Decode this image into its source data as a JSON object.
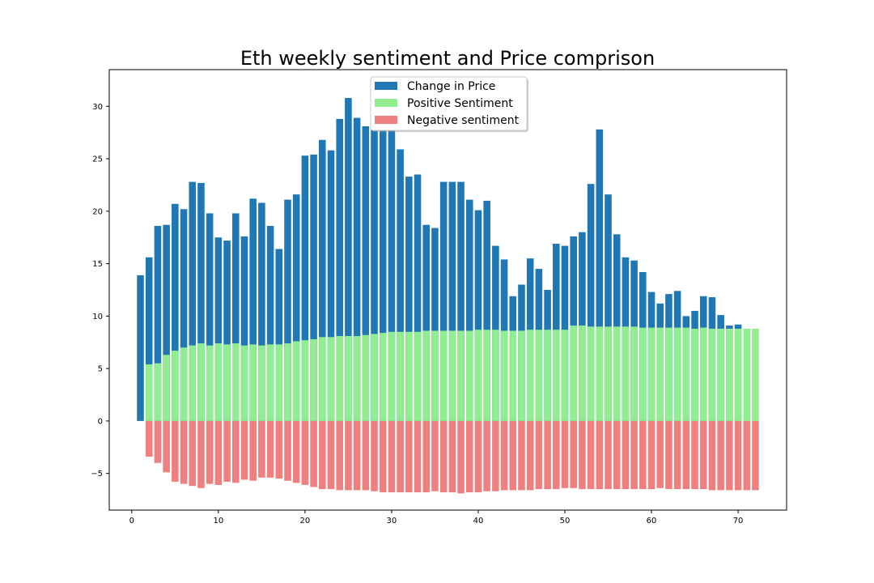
{
  "chart_data": {
    "type": "bar",
    "title": "Eth weekly sentiment and Price comprison",
    "xlabel": "",
    "ylabel": "",
    "xlim": [
      -2.6,
      75.6
    ],
    "ylim": [
      -8.5,
      33.5
    ],
    "xticks": [
      0,
      10,
      20,
      30,
      40,
      50,
      60,
      70
    ],
    "yticks": [
      -5,
      0,
      5,
      10,
      15,
      20,
      25,
      30
    ],
    "ytick_labels": [
      "−5",
      "0",
      "5",
      "10",
      "15",
      "20",
      "25",
      "30"
    ],
    "grid": false,
    "legend_position": "top-center",
    "x": [
      1,
      2,
      3,
      4,
      5,
      6,
      7,
      8,
      9,
      10,
      11,
      12,
      13,
      14,
      15,
      16,
      17,
      18,
      19,
      20,
      21,
      22,
      23,
      24,
      25,
      26,
      27,
      28,
      29,
      30,
      31,
      32,
      33,
      34,
      35,
      36,
      37,
      38,
      39,
      40,
      41,
      42,
      43,
      44,
      45,
      46,
      47,
      48,
      49,
      50,
      51,
      52,
      53,
      54,
      55,
      56,
      57,
      58,
      59,
      60,
      61,
      62,
      63,
      64,
      65,
      66,
      67,
      68,
      69,
      70,
      71,
      72
    ],
    "series": [
      {
        "name": "Change in Price",
        "color": "#1f77b4",
        "values": [
          13.9,
          15.6,
          18.6,
          18.7,
          20.7,
          20.2,
          22.8,
          22.7,
          19.8,
          17.5,
          17.2,
          19.8,
          17.6,
          21.2,
          20.8,
          18.6,
          16.4,
          21.1,
          21.6,
          25.3,
          25.4,
          26.8,
          25.8,
          28.8,
          30.8,
          28.9,
          28.1,
          28.0,
          27.8,
          27.8,
          25.9,
          23.3,
          23.5,
          18.7,
          18.4,
          22.8,
          22.8,
          22.8,
          21.1,
          20.1,
          21.0,
          16.7,
          15.4,
          11.9,
          13.0,
          15.5,
          14.5,
          12.5,
          16.9,
          16.7,
          17.6,
          18.0,
          22.6,
          27.8,
          21.6,
          17.8,
          15.6,
          15.3,
          14.2,
          12.3,
          11.2,
          12.1,
          12.4,
          10.0,
          10.5,
          11.9,
          11.8,
          10.1,
          9.1,
          9.2,
          null,
          null
        ]
      },
      {
        "name": "Positive Sentiment",
        "color": "#90ee90",
        "values": [
          null,
          5.4,
          5.5,
          6.3,
          6.7,
          7.0,
          7.2,
          7.4,
          7.2,
          7.4,
          7.3,
          7.4,
          7.2,
          7.3,
          7.2,
          7.3,
          7.3,
          7.4,
          7.6,
          7.7,
          7.8,
          8.0,
          8.0,
          8.1,
          8.1,
          8.1,
          8.2,
          8.3,
          8.4,
          8.5,
          8.5,
          8.5,
          8.5,
          8.6,
          8.6,
          8.6,
          8.6,
          8.6,
          8.6,
          8.7,
          8.7,
          8.7,
          8.6,
          8.6,
          8.6,
          8.7,
          8.7,
          8.7,
          8.7,
          8.7,
          9.1,
          9.1,
          9.0,
          9.0,
          9.0,
          9.0,
          9.0,
          9.0,
          8.9,
          8.9,
          8.9,
          8.9,
          8.9,
          8.9,
          8.8,
          8.9,
          8.8,
          8.8,
          8.8,
          8.8,
          8.8,
          8.8
        ]
      },
      {
        "name": "Negative sentiment",
        "color": "#f08080",
        "values": [
          null,
          -3.4,
          -4.0,
          -4.9,
          -5.8,
          -6.0,
          -6.2,
          -6.4,
          -6.0,
          -6.1,
          -5.8,
          -5.9,
          -5.6,
          -5.7,
          -5.4,
          -5.4,
          -5.5,
          -5.7,
          -5.9,
          -6.1,
          -6.3,
          -6.5,
          -6.5,
          -6.6,
          -6.6,
          -6.6,
          -6.6,
          -6.7,
          -6.8,
          -6.8,
          -6.8,
          -6.8,
          -6.8,
          -6.8,
          -6.7,
          -6.8,
          -6.8,
          -6.9,
          -6.8,
          -6.8,
          -6.7,
          -6.7,
          -6.6,
          -6.6,
          -6.6,
          -6.6,
          -6.5,
          -6.5,
          -6.5,
          -6.4,
          -6.4,
          -6.5,
          -6.5,
          -6.5,
          -6.5,
          -6.5,
          -6.5,
          -6.5,
          -6.5,
          -6.5,
          -6.4,
          -6.5,
          -6.5,
          -6.5,
          -6.5,
          -6.5,
          -6.6,
          -6.6,
          -6.6,
          -6.6,
          -6.6,
          -6.6
        ]
      }
    ]
  }
}
